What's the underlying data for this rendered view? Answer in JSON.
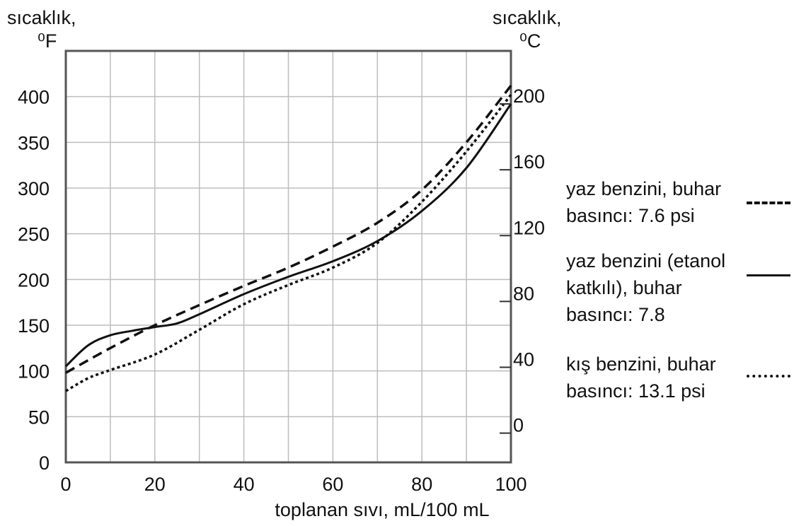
{
  "chart_data": {
    "type": "line",
    "left_axis_label_line1": "sıcaklık,",
    "left_axis_label_line2": "⁰F",
    "right_axis_label_line1": "sıcaklık,",
    "right_axis_label_line2": "⁰C",
    "xlabel": "toplanan sıvı, mL/100 mL",
    "xlim": [
      0,
      100
    ],
    "ylim": [
      0,
      450
    ],
    "x_ticks": [
      0,
      20,
      40,
      60,
      80,
      100
    ],
    "y_ticks": [
      0,
      50,
      100,
      150,
      200,
      250,
      300,
      350,
      400
    ],
    "y2_ticks": [
      0,
      40,
      80,
      120,
      160,
      200
    ],
    "grid": true,
    "legend_position": "right",
    "series": [
      {
        "name": "yaz benzini, buhar basıncı: 7.6 psi",
        "legend_lines": [
          "yaz benzini, buhar",
          "basıncı: 7.6 psi"
        ],
        "style": "dashed",
        "x": [
          0,
          10,
          20,
          30,
          40,
          50,
          60,
          70,
          80,
          90,
          100
        ],
        "y": [
          98,
          125,
          150,
          172,
          193,
          213,
          236,
          262,
          298,
          350,
          412
        ]
      },
      {
        "name": "yaz benzini (etanol katkılı), buhar basıncı: 7.8",
        "legend_lines": [
          "yaz benzini (etanol",
          "katkılı), buhar",
          "basıncı: 7.8"
        ],
        "style": "solid",
        "x": [
          0,
          5,
          10,
          15,
          20,
          25,
          30,
          40,
          50,
          60,
          70,
          80,
          90,
          100
        ],
        "y": [
          105,
          128,
          139,
          144,
          148,
          152,
          162,
          184,
          203,
          220,
          242,
          275,
          322,
          392
        ]
      },
      {
        "name": "kış benzini, buhar basıncı: 13.1 psi",
        "legend_lines": [
          "kış benzini, buhar",
          "basıncı: 13.1 psi"
        ],
        "style": "dotted",
        "x": [
          0,
          5,
          10,
          20,
          30,
          40,
          50,
          60,
          70,
          80,
          90,
          100
        ],
        "y": [
          78,
          92,
          101,
          118,
          145,
          173,
          194,
          213,
          240,
          285,
          340,
          402
        ]
      }
    ]
  }
}
